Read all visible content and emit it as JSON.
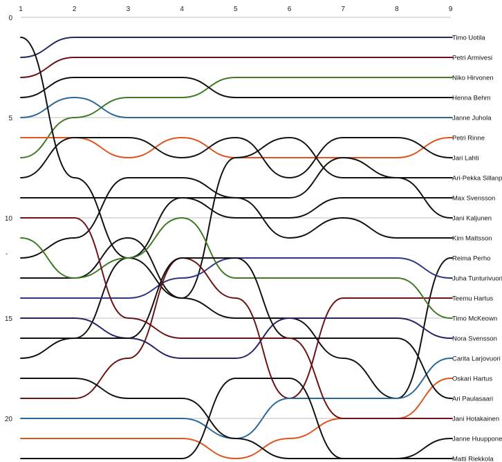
{
  "chart_data": {
    "type": "line",
    "title": "",
    "xlabel": "",
    "ylabel": "",
    "x": [
      1,
      2,
      3,
      4,
      5,
      6,
      7,
      8,
      9
    ],
    "x_tick_labels": [
      "1",
      "2",
      "3",
      "4",
      "5",
      "6",
      "7",
      "8",
      "9"
    ],
    "y_tick_labels": [
      "0",
      "5",
      "10",
      "15",
      "20"
    ],
    "y_ticks": [
      0,
      5,
      10,
      15,
      20
    ],
    "ylim": [
      0,
      22
    ],
    "y_inverted": true,
    "grid": "horizontal",
    "y_axis_stray_mark": "-",
    "series": [
      {
        "name": "Timo Uotila",
        "color": "#1f2a5e",
        "values": [
          2,
          1,
          1,
          1,
          1,
          1,
          1,
          1,
          1
        ]
      },
      {
        "name": "Petri Armivesi",
        "color": "#6b1212",
        "values": [
          3,
          2,
          2,
          2,
          2,
          2,
          2,
          2,
          2
        ]
      },
      {
        "name": "Niko Hirvonen",
        "color": "#3d7a22",
        "values": [
          7,
          5,
          4,
          4,
          3,
          3,
          3,
          3,
          3
        ]
      },
      {
        "name": "Henna Behm",
        "color": "#111111",
        "values": [
          4,
          3,
          3,
          3,
          4,
          4,
          4,
          4,
          4
        ]
      },
      {
        "name": "Janne Juhola",
        "color": "#2a6899",
        "values": [
          5,
          4,
          5,
          5,
          5,
          5,
          5,
          5,
          5
        ]
      },
      {
        "name": "Petri Rinne",
        "color": "#e0521e",
        "values": [
          6,
          6,
          7,
          6,
          7,
          7,
          7,
          7,
          6
        ]
      },
      {
        "name": "Jari Lahti",
        "color": "#111111",
        "values": [
          8,
          6,
          6,
          7,
          6,
          8,
          6,
          6,
          7
        ]
      },
      {
        "name": "Ari-Pekka Sillanpää",
        "color": "#111111",
        "values": [
          12,
          11,
          8,
          8,
          9,
          9,
          7,
          8,
          8
        ]
      },
      {
        "name": "Max Svensson",
        "color": "#111111",
        "values": [
          9,
          9,
          9,
          9,
          10,
          10,
          9,
          9,
          9
        ]
      },
      {
        "name": "Jani Kaljunen",
        "color": "#111111",
        "values": [
          13,
          13,
          11,
          14,
          7,
          6,
          8,
          8,
          10
        ]
      },
      {
        "name": "Kim Mattsson",
        "color": "#111111",
        "values": [
          17,
          16,
          12,
          9,
          9,
          11,
          10,
          11,
          11
        ]
      },
      {
        "name": "Reima Perho",
        "color": "#111111",
        "values": [
          1,
          8,
          12,
          14,
          15,
          15,
          17,
          19,
          12
        ]
      },
      {
        "name": "Juha Tunturivuori",
        "color": "#2b3583",
        "values": [
          14,
          14,
          14,
          13,
          12,
          12,
          12,
          12,
          13
        ]
      },
      {
        "name": "Teemu Hartus",
        "color": "#6b1212",
        "values": [
          19,
          19,
          17,
          12,
          14,
          19,
          14,
          14,
          14
        ]
      },
      {
        "name": "Timo McKeown",
        "color": "#3d7a22",
        "values": [
          11,
          13,
          12,
          10,
          13,
          13,
          13,
          13,
          15
        ]
      },
      {
        "name": "Nora Svensson",
        "color": "#2b1f66",
        "values": [
          15,
          15,
          16,
          17,
          17,
          15,
          15,
          15,
          16
        ]
      },
      {
        "name": "Carita Larjovuori",
        "color": "#2a6899",
        "values": [
          20,
          20,
          20,
          20,
          21,
          19,
          19,
          19,
          17
        ]
      },
      {
        "name": "Oskari Hartus",
        "color": "#e0521e",
        "values": [
          21,
          21,
          21,
          21,
          22,
          21,
          20,
          20,
          18
        ]
      },
      {
        "name": "Ari Paulasaari",
        "color": "#111111",
        "values": [
          16,
          16,
          16,
          12,
          12,
          16,
          16,
          16,
          19
        ]
      },
      {
        "name": "Jani Hotakainen",
        "color": "#6b1212",
        "values": [
          10,
          10,
          15,
          16,
          16,
          16,
          20,
          20,
          20
        ]
      },
      {
        "name": "Janne Huupponen",
        "color": "#111111",
        "values": [
          18,
          18,
          19,
          19,
          21,
          22,
          22,
          22,
          21
        ]
      },
      {
        "name": "Matti Riekkola",
        "color": "#111111",
        "values": [
          22,
          22,
          22,
          22,
          18,
          18,
          22,
          22,
          22
        ]
      }
    ]
  }
}
